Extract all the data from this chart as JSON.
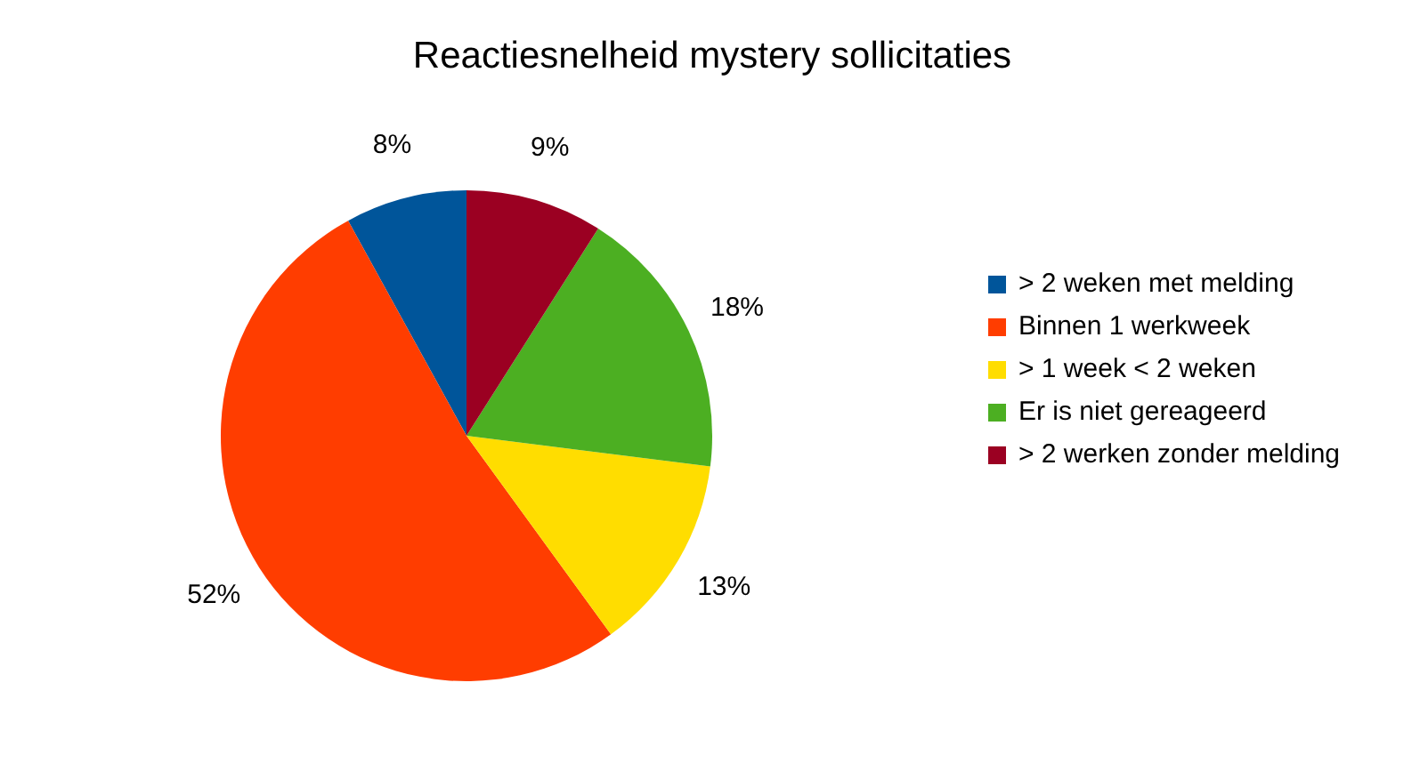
{
  "chart_data": {
    "type": "pie",
    "title": "Reactiesnelheid mystery sollicitaties",
    "categories": [
      "> 2 weken met melding",
      "Binnen 1 werkweek",
      "> 1 week < 2 weken",
      "Er is niet gereageerd",
      "> 2 werken zonder melding"
    ],
    "values": [
      8,
      52,
      13,
      18,
      9
    ],
    "value_labels": [
      "8%",
      "52%",
      "13%",
      "18%",
      "9%"
    ],
    "colors": [
      "#00559a",
      "#ff3d00",
      "#ffdd00",
      "#4caf22",
      "#9b0022"
    ],
    "legend": "right"
  }
}
